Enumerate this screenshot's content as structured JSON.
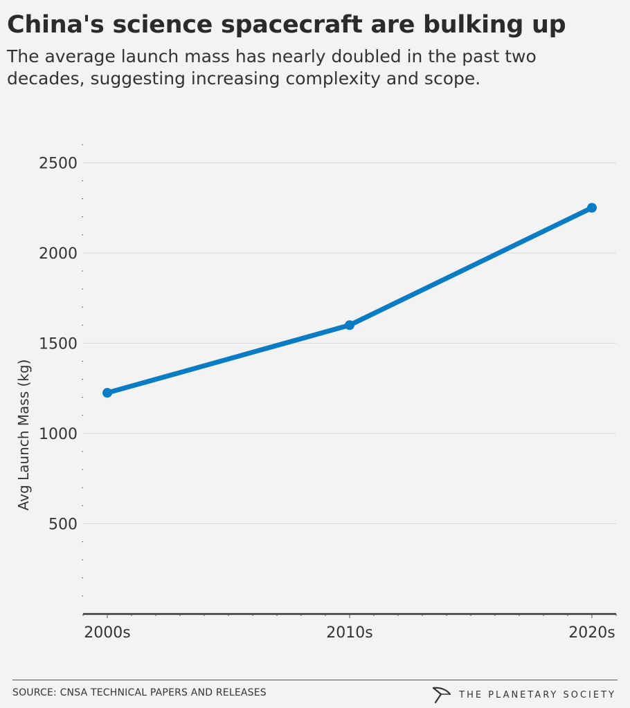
{
  "title": "China's science spacecraft are bulking up",
  "subtitle": "The average launch mass has nearly doubled in the past two decades, suggesting increasing complexity and scope.",
  "footer": {
    "source": "SOURCE: CNSA TECHNICAL PAPERS AND RELEASES",
    "brand": "THE PLANETARY SOCIETY",
    "brand_logo": "planetary-society-logo"
  },
  "colors": {
    "background": "#f3f3f3",
    "line": "#0a7bc5",
    "grid": "#d9d9d9",
    "text": "#333333"
  },
  "chart_data": {
    "type": "line",
    "title": "",
    "xlabel": "",
    "ylabel": "Avg Launch Mass (kg)",
    "categories": [
      "2000s",
      "2010s",
      "2020s"
    ],
    "series": [
      {
        "values": [
          1225,
          1600,
          2250
        ]
      }
    ],
    "ylim": [
      0,
      2750
    ],
    "yticks": [
      500,
      1000,
      1500,
      2000,
      2500
    ],
    "grid": true,
    "legend": "none"
  }
}
